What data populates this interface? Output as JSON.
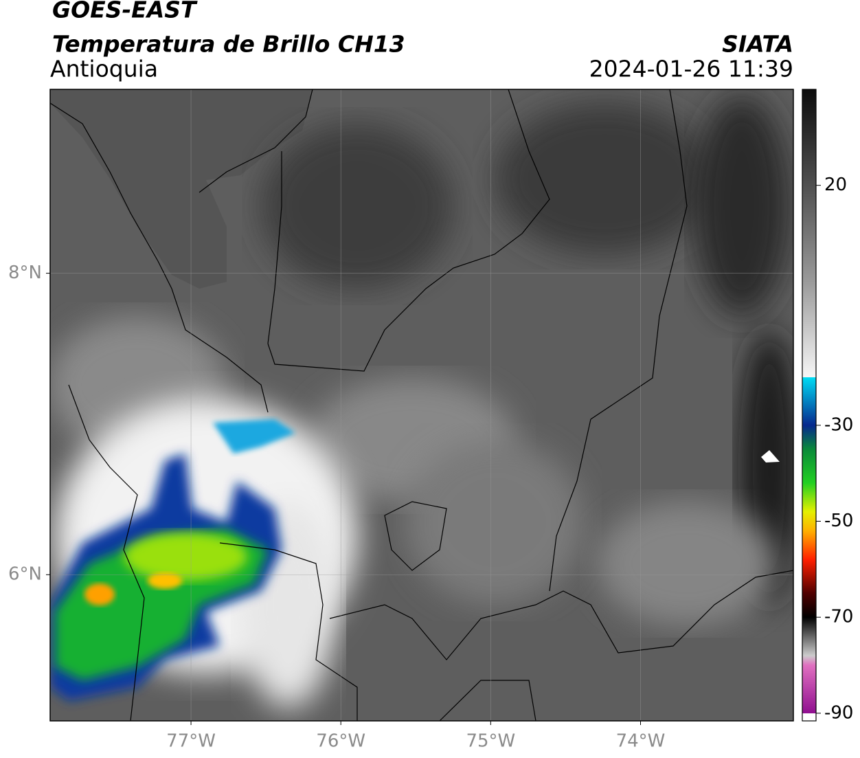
{
  "chart_data": {
    "type": "map",
    "title": "GOES-EAST",
    "subtitle": "Temperatura de Brillo CH13",
    "region": "Antioquia",
    "source": "SIATA",
    "datetime": "2024-01-26 11:39",
    "xlim": [
      -77.94,
      -72.98
    ],
    "ylim": [
      5.03,
      9.22
    ],
    "xticks": [
      {
        "value": -77,
        "label": "77°W"
      },
      {
        "value": -76,
        "label": "76°W"
      },
      {
        "value": -75,
        "label": "75°W"
      },
      {
        "value": -74,
        "label": "74°W"
      }
    ],
    "yticks": [
      {
        "value": 8,
        "label": "8°N"
      },
      {
        "value": 6,
        "label": "6°N"
      }
    ],
    "grid": true,
    "colorbar": {
      "clim": [
        -91.6,
        40
      ],
      "ticks": [
        20,
        -30,
        -50,
        -70,
        -90
      ],
      "colormap": [
        {
          "value": 40,
          "color": "#0c0c0c"
        },
        {
          "value": 20,
          "color": "#505050"
        },
        {
          "value": 0,
          "color": "#9a9a9a"
        },
        {
          "value": -20,
          "color": "#f6f6f6"
        },
        {
          "value": -20,
          "color": "#00dcf4"
        },
        {
          "value": -30,
          "color": "#06288e"
        },
        {
          "value": -35,
          "color": "#0a8a3a"
        },
        {
          "value": -42,
          "color": "#22d022"
        },
        {
          "value": -48,
          "color": "#e4f000"
        },
        {
          "value": -52,
          "color": "#ffb000"
        },
        {
          "value": -58,
          "color": "#ff2000"
        },
        {
          "value": -65,
          "color": "#500000"
        },
        {
          "value": -70,
          "color": "#000000"
        },
        {
          "value": -78,
          "color": "#cccccc"
        },
        {
          "value": -80,
          "color": "#e070c0"
        },
        {
          "value": -90,
          "color": "#901090"
        },
        {
          "value": -90,
          "color": "#ffffff"
        }
      ]
    }
  }
}
